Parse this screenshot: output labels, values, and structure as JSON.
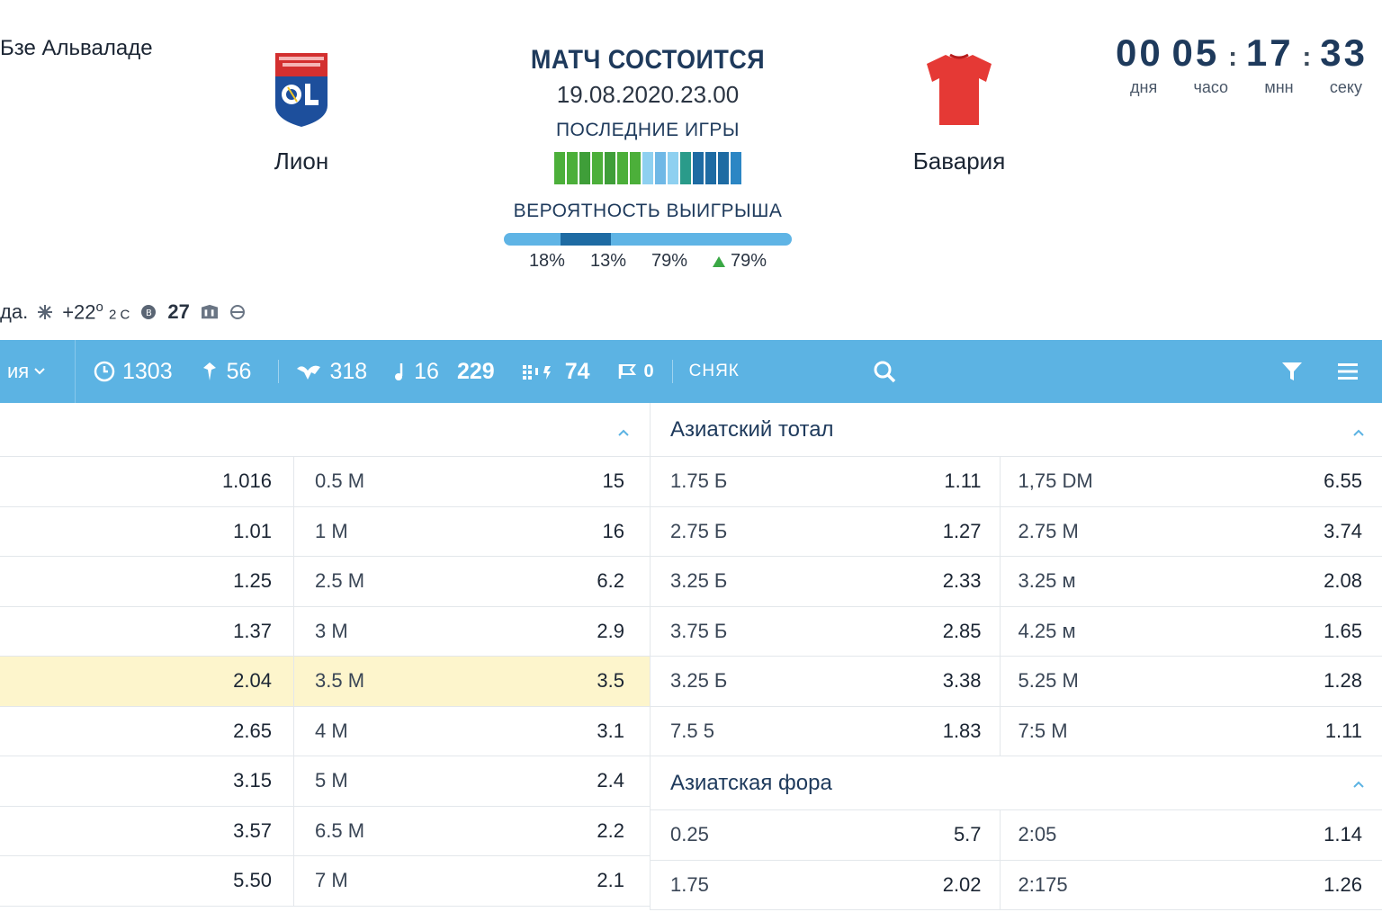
{
  "header": {
    "venue": "Бзе Альваладе",
    "home_team": {
      "name": "Лион",
      "crest": "lyon-crest-icon"
    },
    "away_team": {
      "name": "Бавария",
      "crest": "red-shirt-icon"
    },
    "match_status": "МАТЧ СОСТОИТСЯ",
    "match_date": "19.08.2020.23.00",
    "last_games_title": "ПОСЛЕДНИЕ ИГРЫ",
    "form_bar_colors": [
      "#4caf3a",
      "#4caf3a",
      "#3f9e39",
      "#4caf3a",
      "#3f9e39",
      "#4caf3a",
      "#4caf3a",
      "#8ed0f0",
      "#6fb8e6",
      "#8ed0f0",
      "#2a9b8a",
      "#1e6ba3",
      "#1e6ba3",
      "#1e6ba3",
      "#2c86c4"
    ],
    "win_probability_title": "ВЕРОЯТНОСТЬ ВЫИГРЫША",
    "win_probability": {
      "home": 18,
      "draw": 13,
      "away": 79
    },
    "prob_values": [
      "18%",
      "13%",
      "79%",
      "79%"
    ],
    "countdown": {
      "days": "00",
      "hours": "05",
      "minutes": "17",
      "seconds": "33",
      "labels": [
        "дня",
        "часо",
        "мнн",
        "секу"
      ]
    },
    "weather": {
      "prefix": "да.",
      "temperature": "+22",
      "degree": "o",
      "small": "2 C",
      "count": "27",
      "icons": [
        "snow-icon",
        "coin-icon",
        "shield-icon",
        "globe-icon"
      ]
    }
  },
  "toolbar": {
    "market_label": "ия",
    "stats": [
      {
        "icon": "clock-icon",
        "value": "1303"
      },
      {
        "icon": "pin-icon",
        "value": "56"
      },
      {
        "icon": "bird-icon",
        "value": "318"
      },
      {
        "icon": "note-icon",
        "value": "16"
      },
      {
        "icon": "",
        "value": "229"
      },
      {
        "icon": "grid-icon",
        "value": "74"
      },
      {
        "icon": "flag-icon",
        "value": "0"
      }
    ],
    "more_label": "СНЯК",
    "accent": "#5cb3e3"
  },
  "left_table": {
    "rows": [
      {
        "c1": "1.016",
        "label": "0.5 М",
        "odd": "15"
      },
      {
        "c1": "1.01",
        "label": "1 М",
        "odd": "16"
      },
      {
        "c1": "1.25",
        "label": "2.5 М",
        "odd": "6.2"
      },
      {
        "c1": "1.37",
        "label": "3 М",
        "odd": "2.9"
      },
      {
        "c1": "2.04",
        "label": "3.5 М",
        "odd": "3.5",
        "highlight": true
      },
      {
        "c1": "2.65",
        "label": "4 М",
        "odd": "3.1"
      },
      {
        "c1": "3.15",
        "label": "5 М",
        "odd": "2.4"
      },
      {
        "c1": "3.57",
        "label": "6.5 М",
        "odd": "2.2"
      },
      {
        "c1": "5.50",
        "label": "7 М",
        "odd": "2.1"
      }
    ]
  },
  "asian_total": {
    "title": "Азиатский тотал",
    "rows": [
      {
        "l1": "1.75 Б",
        "o1": "1.11",
        "l2": "1,75 DM",
        "o2": "6.55"
      },
      {
        "l1": "2.75 Б",
        "o1": "1.27",
        "l2": "2.75 М",
        "o2": "3.74"
      },
      {
        "l1": "3.25 Б",
        "o1": "2.33",
        "l2": "3.25 м",
        "o2": "2.08"
      },
      {
        "l1": "3.75 Б",
        "o1": "2.85",
        "l2": "4.25 м",
        "o2": "1.65"
      },
      {
        "l1": "3.25 Б",
        "o1": "3.38",
        "l2": "5.25 М",
        "o2": "1.28"
      },
      {
        "l1": "7.5 5",
        "o1": "1.83",
        "l2": "7:5 М",
        "o2": "1.11"
      }
    ]
  },
  "asian_handicap": {
    "title": "Азиатская фора",
    "rows": [
      {
        "l1": "0.25",
        "o1": "5.7",
        "l2": "2:05",
        "o2": "1.14"
      },
      {
        "l1": "1.75",
        "o1": "2.02",
        "l2": "2:175",
        "o2": "1.26"
      }
    ]
  }
}
